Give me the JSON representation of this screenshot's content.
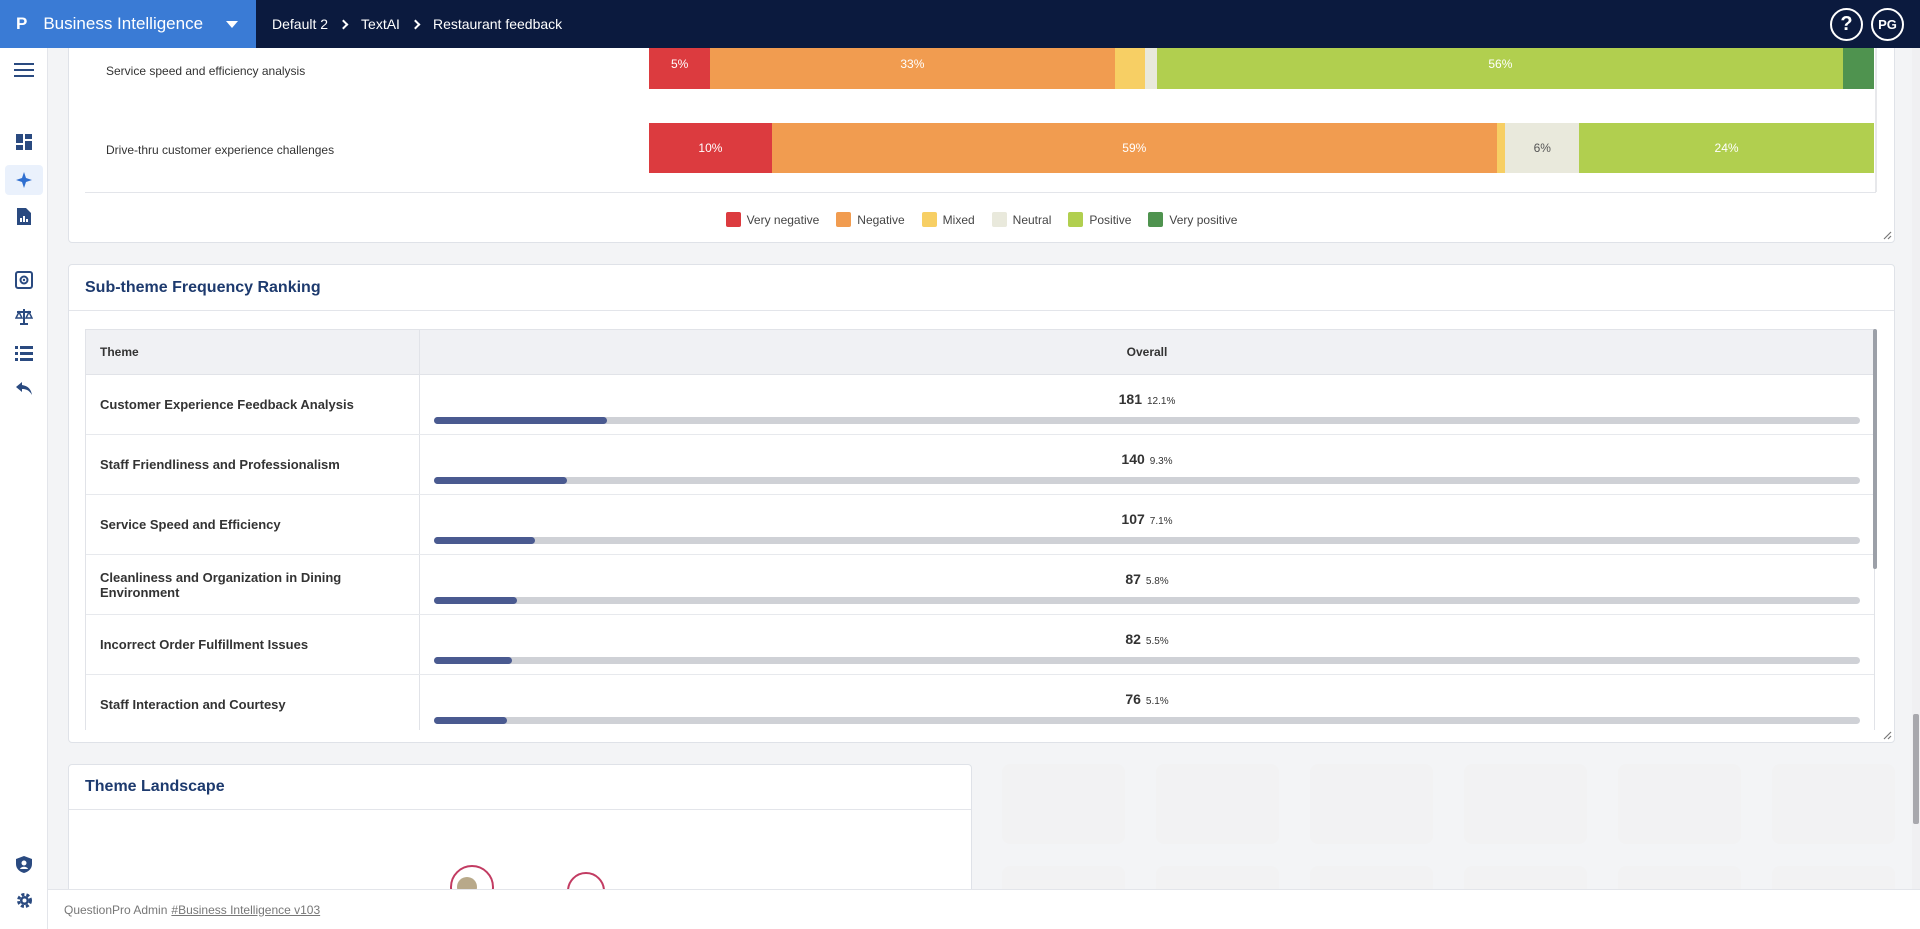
{
  "topbar": {
    "brand_logo": "P",
    "brand_title": "Business Intelligence",
    "breadcrumbs": [
      "Default 2",
      "TextAI",
      "Restaurant feedback"
    ],
    "help_label": "?",
    "avatar_initials": "PG"
  },
  "rail": {
    "items": [
      "menu-icon",
      "dashboard-icon",
      "sparkle-icon",
      "report-icon",
      "analysis-icon",
      "scale-icon",
      "list-icon",
      "reply-icon",
      "user-shield-icon",
      "settings-icon"
    ]
  },
  "sentiment": {
    "rows": [
      {
        "label": "Service speed and efficiency analysis",
        "segments": [
          {
            "level": "very_negative",
            "pct": 5,
            "label": "5%"
          },
          {
            "level": "negative",
            "pct": 33,
            "label": "33%"
          },
          {
            "level": "mixed",
            "pct": 2.5,
            "label": ""
          },
          {
            "level": "neutral",
            "pct": 1,
            "label": ""
          },
          {
            "level": "positive",
            "pct": 56,
            "label": "56%"
          },
          {
            "level": "very_positive",
            "pct": 2.5,
            "label": ""
          }
        ]
      },
      {
        "label": "Drive-thru customer experience challenges",
        "segments": [
          {
            "level": "very_negative",
            "pct": 10,
            "label": "10%"
          },
          {
            "level": "negative",
            "pct": 59,
            "label": "59%"
          },
          {
            "level": "mixed",
            "pct": 0.7,
            "label": ""
          },
          {
            "level": "neutral",
            "pct": 6,
            "label": "6%"
          },
          {
            "level": "positive",
            "pct": 24,
            "label": "24%"
          }
        ]
      }
    ],
    "legend": [
      {
        "key": "very_negative",
        "label": "Very negative"
      },
      {
        "key": "negative",
        "label": "Negative"
      },
      {
        "key": "mixed",
        "label": "Mixed"
      },
      {
        "key": "neutral",
        "label": "Neutral"
      },
      {
        "key": "positive",
        "label": "Positive"
      },
      {
        "key": "very_positive",
        "label": "Very positive"
      }
    ],
    "colors": {
      "very_negative": "#dc3b3f",
      "negative": "#f19c50",
      "mixed": "#f7cf64",
      "neutral": "#e9e9dc",
      "positive": "#b1cf4f",
      "very_positive": "#4f934f"
    }
  },
  "ranking": {
    "title": "Sub-theme Frequency Ranking",
    "col_theme": "Theme",
    "col_overall": "Overall",
    "rows": [
      {
        "theme": "Customer Experience Feedback Analysis",
        "count": "181",
        "pct": "12.1%",
        "fill": 0.121
      },
      {
        "theme": "Staff Friendliness and Professionalism",
        "count": "140",
        "pct": "9.3%",
        "fill": 0.093
      },
      {
        "theme": "Service Speed and Efficiency",
        "count": "107",
        "pct": "7.1%",
        "fill": 0.071
      },
      {
        "theme": "Cleanliness and Organization in Dining Environment",
        "count": "87",
        "pct": "5.8%",
        "fill": 0.058
      },
      {
        "theme": "Incorrect Order Fulfillment Issues",
        "count": "82",
        "pct": "5.5%",
        "fill": 0.055
      },
      {
        "theme": "Staff Interaction and Courtesy",
        "count": "76",
        "pct": "5.1%",
        "fill": 0.051
      }
    ]
  },
  "landscape": {
    "title": "Theme Landscape"
  },
  "footer": {
    "prefix": "QuestionPro Admin",
    "link": "#Business Intelligence v103"
  }
}
